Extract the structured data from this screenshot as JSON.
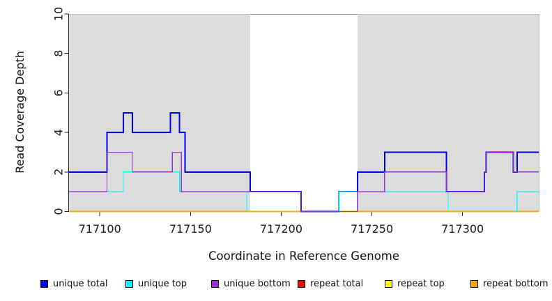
{
  "figure": {
    "y_axis_label": "Read Coverage Depth",
    "x_axis_label": "Coordinate in Reference Genome"
  },
  "legend": {
    "items": [
      {
        "label": "unique total",
        "color": "#0000EE"
      },
      {
        "label": "unique top",
        "color": "#00FFFF"
      },
      {
        "label": "unique bottom",
        "color": "#9932CC"
      },
      {
        "label": "repeat total",
        "color": "#EE0000"
      },
      {
        "label": "repeat top",
        "color": "#FFFF00"
      },
      {
        "label": "repeat bottom",
        "color": "#FFA500"
      }
    ]
  },
  "chart_data": {
    "type": "line",
    "subtype": "step-coverage",
    "title": "",
    "xlabel": "Coordinate in Reference Genome",
    "ylabel": "Read Coverage Depth",
    "xlim": [
      717083,
      717342
    ],
    "ylim": [
      0,
      10
    ],
    "x_ticks": [
      717100,
      717150,
      717200,
      717250,
      717300
    ],
    "y_ticks": [
      0,
      2,
      4,
      6,
      8,
      10
    ],
    "grid": false,
    "legend_position": "bottom",
    "colors": {
      "band_fill": "#DCDCDC",
      "band_edge": "#BDBDBD",
      "gap_edge": "#8C8C8C",
      "axis": "#262626",
      "text": "#1a1a1a"
    },
    "background_bands": [
      {
        "from": 717083,
        "to": 717183
      },
      {
        "from": 717242,
        "to": 717342
      }
    ],
    "white_gap": {
      "from": 717183,
      "to": 717242
    },
    "series": [
      {
        "name": "repeat total",
        "color": "#EE0000",
        "width": 1.2,
        "start": 0,
        "steps": []
      },
      {
        "name": "repeat top",
        "color": "#FFFF00",
        "width": 1.2,
        "start": 0,
        "steps": []
      },
      {
        "name": "repeat bottom",
        "color": "#FFA500",
        "width": 1.6,
        "start": 0,
        "steps": []
      },
      {
        "name": "unique total",
        "color": "#0000EE",
        "width": 2.0,
        "start": 2,
        "steps": [
          [
            717104,
            4
          ],
          [
            717113,
            5
          ],
          [
            717118,
            4
          ],
          [
            717139,
            5
          ],
          [
            717144,
            4
          ],
          [
            717147,
            2
          ],
          [
            717183,
            1
          ],
          [
            717211,
            0
          ],
          [
            717232,
            1
          ],
          [
            717242,
            2
          ],
          [
            717257,
            3
          ],
          [
            717291,
            1
          ],
          [
            717312,
            2
          ],
          [
            717313,
            3
          ],
          [
            717328,
            2
          ],
          [
            717330,
            3
          ]
        ]
      },
      {
        "name": "unique top",
        "color": "#00FFFF",
        "width": 1.2,
        "start": 1,
        "steps": [
          [
            717113,
            2
          ],
          [
            717144,
            1
          ],
          [
            717181,
            0
          ],
          [
            717232,
            1
          ],
          [
            717292,
            0
          ],
          [
            717330,
            1
          ]
        ]
      },
      {
        "name": "unique bottom",
        "color": "#9932CC",
        "width": 1.2,
        "start": 1,
        "steps": [
          [
            717104,
            3
          ],
          [
            717118,
            2
          ],
          [
            717140,
            3
          ],
          [
            717145,
            1
          ],
          [
            717211,
            0
          ],
          [
            717242,
            1
          ],
          [
            717257,
            2
          ],
          [
            717291,
            1
          ],
          [
            717312,
            2
          ],
          [
            717313,
            3
          ],
          [
            717328,
            2
          ]
        ]
      }
    ]
  }
}
